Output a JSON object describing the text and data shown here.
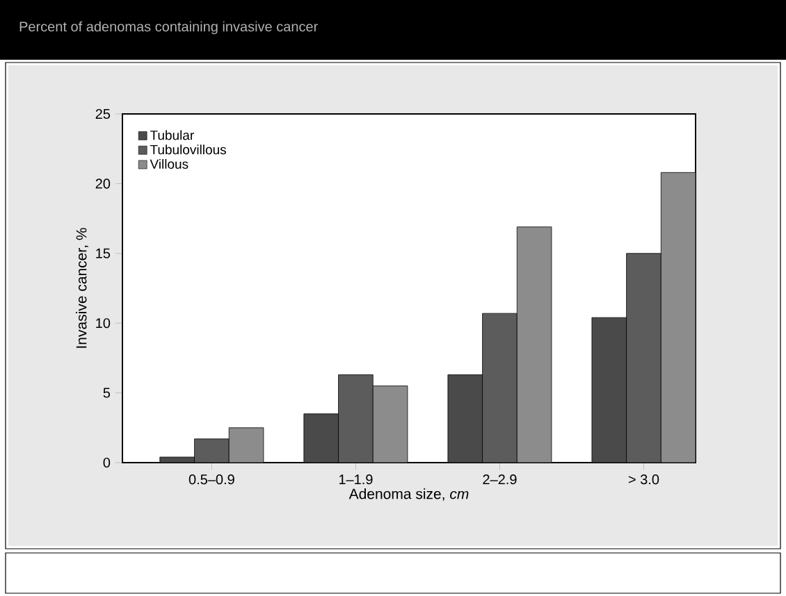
{
  "chart_data": {
    "type": "bar",
    "title": "Percent of adenomas containing invasive cancer",
    "xlabel": "Adenoma size, *cm*",
    "ylabel": "Invasive cancer, %",
    "categories": [
      "0.5–0.9",
      "1–1.9",
      "2–2.9",
      "> 3.0"
    ],
    "series": [
      {
        "name": "Tubular",
        "color": "#4a4a4a",
        "values": [
          0.4,
          3.5,
          6.3,
          10.4
        ]
      },
      {
        "name": "Tubulovillous",
        "color": "#5c5c5c",
        "values": [
          1.7,
          6.3,
          10.7,
          15.0
        ]
      },
      {
        "name": "Villous",
        "color": "#8c8c8c",
        "values": [
          2.5,
          5.5,
          16.9,
          20.8
        ]
      }
    ],
    "ylim": [
      0,
      25
    ],
    "yticks": [
      0,
      5,
      10,
      15,
      20,
      25
    ],
    "grid": false,
    "legend": "top left"
  }
}
